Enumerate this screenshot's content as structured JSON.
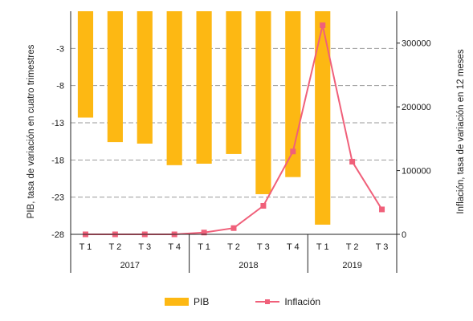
{
  "chart_data": {
    "type": "bar+line",
    "title": "",
    "categories": [
      "T 1",
      "T 2",
      "T 3",
      "T 4",
      "T 1",
      "T 2",
      "T 3",
      "T 4",
      "T 1",
      "T 2",
      "T 3"
    ],
    "years": [
      {
        "label": "2017",
        "count": 4
      },
      {
        "label": "2018",
        "count": 4
      },
      {
        "label": "2019",
        "count": 3
      }
    ],
    "series": [
      {
        "name": "PIB",
        "type": "bar",
        "axis": "left",
        "color": "#FDB813",
        "values": [
          -12.3,
          -15.6,
          -15.8,
          -18.7,
          -18.5,
          -17.2,
          -22.6,
          -20.3,
          -26.7,
          null,
          null
        ]
      },
      {
        "name": "Inflación",
        "type": "line",
        "axis": "right",
        "color": "#F0607A",
        "values": [
          0,
          0,
          0,
          0,
          2800,
          9800,
          44700,
          130000,
          328000,
          114000,
          39100
        ]
      }
    ],
    "y_left": {
      "label": "PIB, tasa de variación en cuatro trimestres",
      "lim": [
        -28,
        2
      ],
      "ticks": [
        -28,
        -23,
        -18,
        -13,
        -8,
        -3
      ],
      "tick_labels": [
        "-28",
        "-23",
        "-18",
        "-13",
        "-8",
        "-3"
      ]
    },
    "y_right": {
      "label": "Inflación, tasa de variación en 12 meses",
      "lim": [
        0,
        350000
      ],
      "ticks": [
        0,
        100000,
        200000,
        300000
      ],
      "tick_labels": [
        "0",
        "100000",
        "200000",
        "300000"
      ]
    },
    "grid": true,
    "legend_position": "bottom-center"
  }
}
